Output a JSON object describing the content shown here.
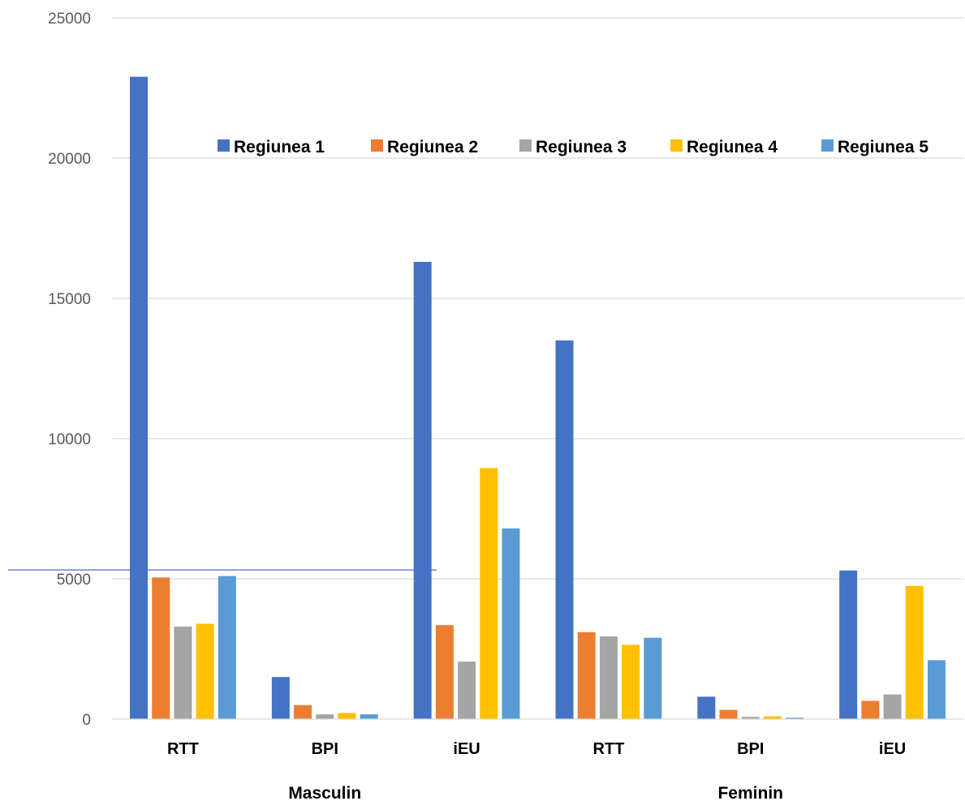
{
  "chart_data": {
    "type": "bar",
    "title": "",
    "xlabel": "",
    "ylabel": "",
    "ylim": [
      0,
      25000
    ],
    "yticks": [
      0,
      5000,
      10000,
      15000,
      20000,
      25000
    ],
    "grid": true,
    "legend_position": "top-right",
    "groups": [
      {
        "label": "Masculin",
        "categories": [
          "RTT",
          "BPI",
          "iEU"
        ]
      },
      {
        "label": "Feminin",
        "categories": [
          "RTT",
          "BPI",
          "iEU"
        ]
      }
    ],
    "categories": [
      "RTT",
      "BPI",
      "iEU",
      "RTT",
      "BPI",
      "iEU"
    ],
    "series": [
      {
        "name": "Regiunea 1",
        "color": "#4472C4",
        "values": [
          22900,
          1500,
          16300,
          13500,
          800,
          5300
        ]
      },
      {
        "name": "Regiunea 2",
        "color": "#ED7D31",
        "values": [
          5050,
          500,
          3350,
          3100,
          330,
          650
        ]
      },
      {
        "name": "Regiunea 3",
        "color": "#A5A5A5",
        "values": [
          3300,
          170,
          2050,
          2950,
          80,
          880
        ]
      },
      {
        "name": "Regiunea 4",
        "color": "#FFC000",
        "values": [
          3400,
          220,
          8950,
          2650,
          100,
          4750
        ]
      },
      {
        "name": "Regiunea 5",
        "color": "#5B9BD5",
        "values": [
          5100,
          170,
          6800,
          2900,
          50,
          2100
        ]
      }
    ],
    "gridline_color": "#D9D9D9",
    "annotation_line_color": "#4472C4"
  }
}
